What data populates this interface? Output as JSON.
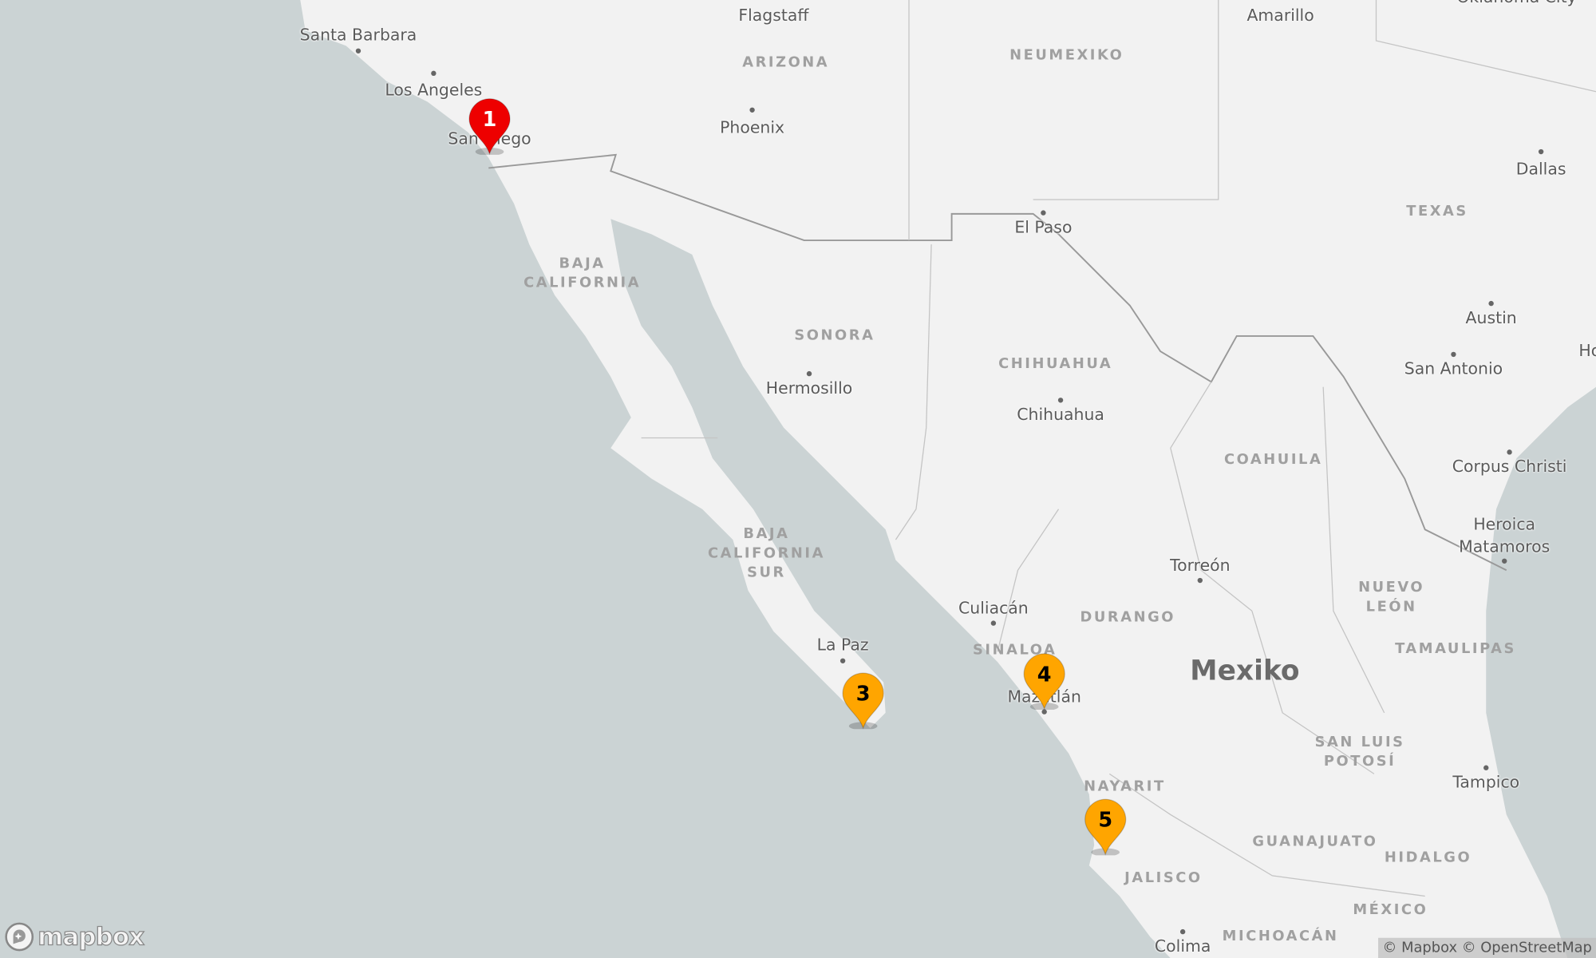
{
  "colors": {
    "water": "#cbd3d4",
    "land": "#f2f2f2",
    "marker_primary": "#ee0000",
    "marker_secondary": "#ffa500"
  },
  "cities": [
    "Santa Barbara",
    "Los Angeles",
    "San Diego",
    "Flagstaff",
    "Phoenix",
    "Amarillo",
    "Dallas",
    "El Paso",
    "Austin",
    "San Antonio",
    "Hermosillo",
    "Chihuahua",
    "Corpus Christi",
    "Heroica Matamoros",
    "Torreón",
    "Culiacán",
    "La Paz",
    "Mazatlán",
    "Tampico",
    "Colima",
    "Oklahoma City",
    "Ho"
  ],
  "regions": [
    "ARIZONA",
    "NEUMEXIKO",
    "TEXAS",
    "BAJA CALIFORNIA",
    "SONORA",
    "CHIHUAHUA",
    "COAHUILA",
    "BAJA CALIFORNIA SUR",
    "DURANGO",
    "NUEVO LEÓN",
    "SINALOA",
    "TAMAULIPAS",
    "SAN LUIS POTOSÍ",
    "NAYARIT",
    "GUANAJUATO",
    "HIDALGO",
    "JALISCO",
    "MÉXICO",
    "MICHOACÁN"
  ],
  "country": "Mexiko",
  "markers": [
    {
      "label": "1",
      "color": "#ee0000",
      "text_color": "#ffffff"
    },
    {
      "label": "3",
      "color": "#ffa500",
      "text_color": "#000000"
    },
    {
      "label": "4",
      "color": "#ffa500",
      "text_color": "#000000"
    },
    {
      "label": "5",
      "color": "#ffa500",
      "text_color": "#000000"
    }
  ],
  "logo": "mapbox",
  "attribution": "© Mapbox © OpenStreetMap"
}
